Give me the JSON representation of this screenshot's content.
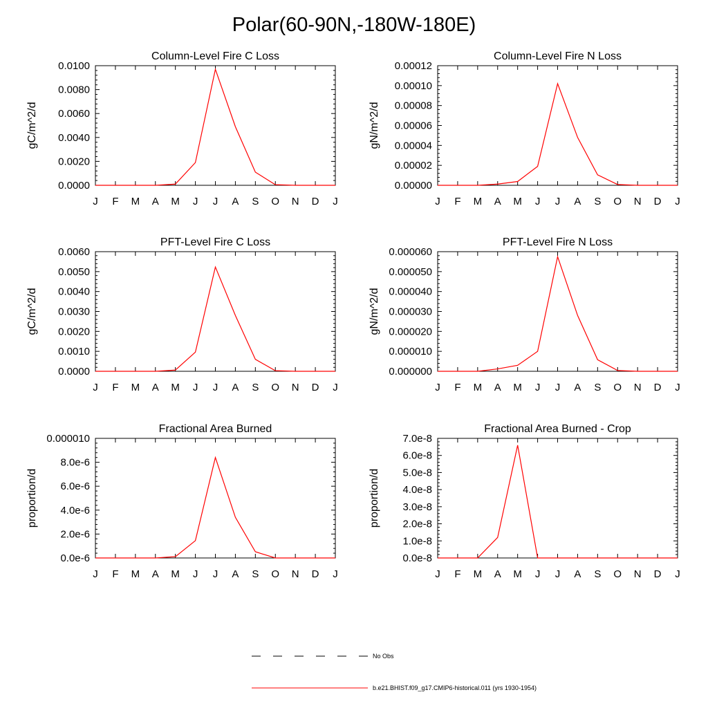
{
  "title": "Polar(60-90N,-180W-180E)",
  "line_color": "#ff0000",
  "chart_data": [
    {
      "type": "line",
      "title": "Column-Level Fire C Loss",
      "ylabel": "gC/m^2/d",
      "ylim": [
        0,
        0.01
      ],
      "yticks": [
        "0.0000",
        "0.0020",
        "0.0040",
        "0.0060",
        "0.0080",
        "0.0100"
      ],
      "categories": [
        "J",
        "F",
        "M",
        "A",
        "M",
        "J",
        "J",
        "A",
        "S",
        "O",
        "N",
        "D",
        "J"
      ],
      "series": [
        {
          "name": "b.e21.BHIST.f09_g17.CMIP6-historical.011 (yrs 1930-1954)",
          "values": [
            0,
            0,
            0,
            0,
            0.0001,
            0.0019,
            0.0097,
            0.0049,
            0.0011,
            5e-05,
            0,
            0,
            0
          ]
        }
      ]
    },
    {
      "type": "line",
      "title": "Column-Level Fire N Loss",
      "ylabel": "gN/m^2/d",
      "ylim": [
        0,
        0.00012
      ],
      "yticks": [
        "0.00000",
        "0.00002",
        "0.00004",
        "0.00006",
        "0.00008",
        "0.00010",
        "0.00012"
      ],
      "categories": [
        "J",
        "F",
        "M",
        "A",
        "M",
        "J",
        "J",
        "A",
        "S",
        "O",
        "N",
        "D",
        "J"
      ],
      "series": [
        {
          "name": "b.e21.BHIST.f09_g17.CMIP6-historical.011 (yrs 1930-1954)",
          "values": [
            0,
            0,
            0,
            1.2e-06,
            3.8e-06,
            1.9e-05,
            0.000102,
            4.8e-05,
            1.05e-05,
            8e-07,
            0,
            0,
            0
          ]
        }
      ]
    },
    {
      "type": "line",
      "title": "PFT-Level Fire C Loss",
      "ylabel": "gC/m^2/d",
      "ylim": [
        0,
        0.006
      ],
      "yticks": [
        "0.0000",
        "0.0010",
        "0.0020",
        "0.0030",
        "0.0040",
        "0.0050",
        "0.0060"
      ],
      "categories": [
        "J",
        "F",
        "M",
        "A",
        "M",
        "J",
        "J",
        "A",
        "S",
        "O",
        "N",
        "D",
        "J"
      ],
      "series": [
        {
          "name": "b.e21.BHIST.f09_g17.CMIP6-historical.011 (yrs 1930-1954)",
          "values": [
            0,
            0,
            0,
            0,
            6e-05,
            0.00096,
            0.00523,
            0.0028,
            0.0006,
            3e-05,
            0,
            0,
            0
          ]
        }
      ]
    },
    {
      "type": "line",
      "title": "PFT-Level Fire N Loss",
      "ylabel": "gN/m^2/d",
      "ylim": [
        0,
        6e-05
      ],
      "yticks": [
        "0.000000",
        "0.000010",
        "0.000020",
        "0.000030",
        "0.000040",
        "0.000050",
        "0.000060"
      ],
      "categories": [
        "J",
        "F",
        "M",
        "A",
        "M",
        "J",
        "J",
        "A",
        "S",
        "O",
        "N",
        "D",
        "J"
      ],
      "series": [
        {
          "name": "b.e21.BHIST.f09_g17.CMIP6-historical.011 (yrs 1930-1954)",
          "values": [
            0,
            0,
            0,
            1.2e-06,
            3e-06,
            1e-05,
            5.75e-05,
            2.8e-05,
            5.8e-06,
            4e-07,
            0,
            0,
            0
          ]
        }
      ]
    },
    {
      "type": "line",
      "title": "Fractional Area Burned",
      "ylabel": "proportion/d",
      "ylim": [
        0,
        1e-05
      ],
      "yticks": [
        "0.0e-6",
        "2.0e-6",
        "4.0e-6",
        "6.0e-6",
        "8.0e-6",
        "0.000010"
      ],
      "categories": [
        "J",
        "F",
        "M",
        "A",
        "M",
        "J",
        "J",
        "A",
        "S",
        "O",
        "N",
        "D",
        "J"
      ],
      "series": [
        {
          "name": "b.e21.BHIST.f09_g17.CMIP6-historical.011 (yrs 1930-1954)",
          "values": [
            0,
            0,
            0,
            0,
            1.1e-07,
            1.45e-06,
            8.4e-06,
            3.4e-06,
            5.2e-07,
            0,
            0,
            0,
            0
          ]
        }
      ]
    },
    {
      "type": "line",
      "title": "Fractional Area Burned - Crop",
      "ylabel": "proportion/d",
      "ylim": [
        0,
        7e-08
      ],
      "yticks": [
        "0.0e-8",
        "1.0e-8",
        "2.0e-8",
        "3.0e-8",
        "4.0e-8",
        "5.0e-8",
        "6.0e-8",
        "7.0e-8"
      ],
      "categories": [
        "J",
        "F",
        "M",
        "A",
        "M",
        "J",
        "J",
        "A",
        "S",
        "O",
        "N",
        "D",
        "J"
      ],
      "series": [
        {
          "name": "b.e21.BHIST.f09_g17.CMIP6-historical.011 (yrs 1930-1954)",
          "values": [
            0,
            0,
            0,
            1.2e-08,
            6.6e-08,
            0,
            0,
            0,
            0,
            0,
            0,
            0,
            0
          ]
        }
      ]
    }
  ],
  "legend": {
    "placement": "bottom-center",
    "entries": [
      {
        "label": "No Obs",
        "style": "dashed",
        "color": "#000000"
      },
      {
        "label": "b.e21.BHIST.f09_g17.CMIP6-historical.011 (yrs 1930-1954)",
        "style": "solid",
        "color": "#ff0000"
      }
    ]
  }
}
